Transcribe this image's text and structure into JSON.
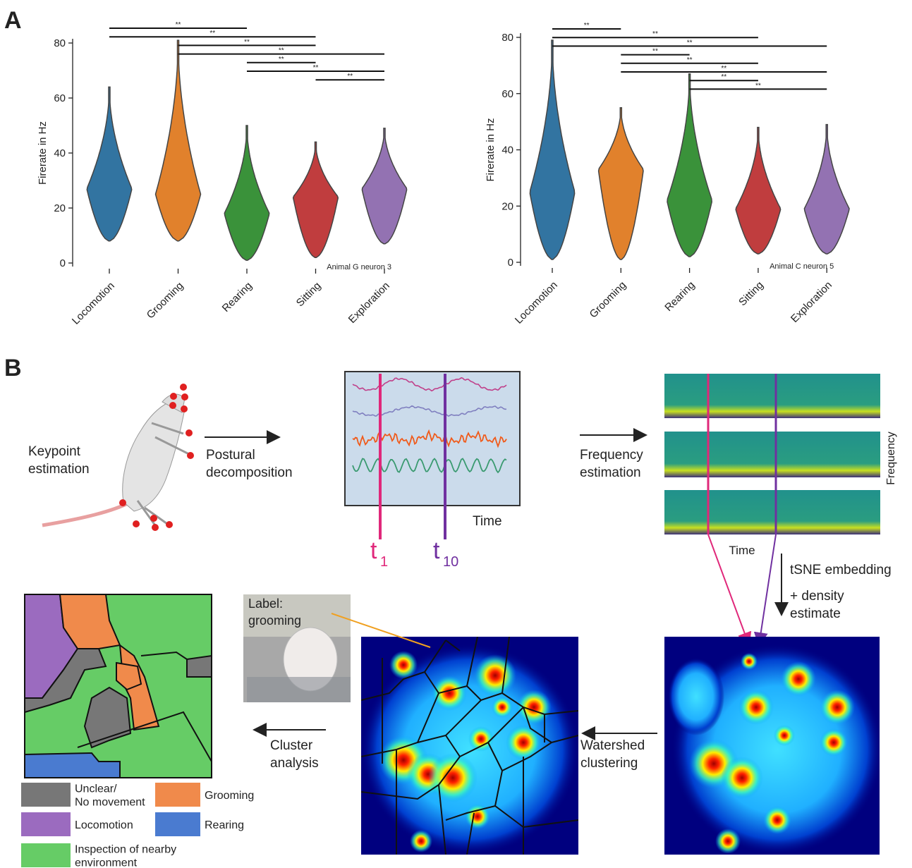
{
  "panel_labels": [
    "A",
    "B"
  ],
  "chart_data": [
    {
      "type": "violin",
      "ylabel": "Firerate in Hz",
      "categories": [
        "Locomotion",
        "Grooming",
        "Rearing",
        "Sitting",
        "Exploration"
      ],
      "values": [
        27,
        25,
        18,
        24,
        27
      ],
      "ranges": [
        [
          8,
          64
        ],
        [
          8,
          81
        ],
        [
          1,
          50
        ],
        [
          2,
          44
        ],
        [
          7,
          49
        ]
      ],
      "colors": [
        "#3274a1",
        "#e1812c",
        "#3a923a",
        "#c03d3e",
        "#9372b2"
      ],
      "ylim": [
        0,
        80
      ],
      "yticks": [
        0,
        20,
        40,
        60,
        80
      ],
      "annotation": "Animal G neuron 3",
      "significance": [
        {
          "from": 0,
          "to": 2,
          "label": "**"
        },
        {
          "from": 0,
          "to": 3,
          "label": "**"
        },
        {
          "from": 1,
          "to": 3,
          "label": "**"
        },
        {
          "from": 1,
          "to": 4,
          "label": "**"
        },
        {
          "from": 2,
          "to": 3,
          "label": "**"
        },
        {
          "from": 2,
          "to": 4,
          "label": "**"
        },
        {
          "from": 3,
          "to": 4,
          "label": "**"
        }
      ]
    },
    {
      "type": "violin",
      "ylabel": "Firerate in Hz",
      "categories": [
        "Locomotion",
        "Grooming",
        "Rearing",
        "Sitting",
        "Exploration"
      ],
      "values": [
        25,
        33,
        22,
        19,
        19
      ],
      "ranges": [
        [
          1,
          79
        ],
        [
          1,
          55
        ],
        [
          2,
          67
        ],
        [
          3,
          48
        ],
        [
          3,
          49
        ]
      ],
      "colors": [
        "#3274a1",
        "#e1812c",
        "#3a923a",
        "#c03d3e",
        "#9372b2"
      ],
      "ylim": [
        0,
        80
      ],
      "yticks": [
        0,
        20,
        40,
        60,
        80
      ],
      "annotation": "Animal C neuron 5",
      "significance": [
        {
          "from": 0,
          "to": 1,
          "label": "**"
        },
        {
          "from": 0,
          "to": 3,
          "label": "**"
        },
        {
          "from": 0,
          "to": 4,
          "label": "**"
        },
        {
          "from": 1,
          "to": 2,
          "label": "**"
        },
        {
          "from": 1,
          "to": 3,
          "label": "**"
        },
        {
          "from": 1,
          "to": 4,
          "label": "**"
        },
        {
          "from": 2,
          "to": 3,
          "label": "**"
        },
        {
          "from": 2,
          "to": 4,
          "label": "**"
        }
      ]
    }
  ],
  "diagram": {
    "keypoint": [
      "Keypoint",
      "estimation"
    ],
    "postural": [
      "Postural",
      "decomposition"
    ],
    "time_a": "Time",
    "t1": {
      "base": "t",
      "sub": "1"
    },
    "t10": {
      "base": "t",
      "sub": "10"
    },
    "frequency_step": [
      "Frequency",
      "estimation"
    ],
    "frequency_axis": "Frequency",
    "time_b": "Time",
    "tsne": "tSNE embedding",
    "density": [
      "+ density",
      "estimate"
    ],
    "watershed": [
      "Watershed",
      "clustering"
    ],
    "cluster": [
      "Cluster",
      "analysis"
    ],
    "photo_label": [
      "Label:",
      "grooming"
    ]
  },
  "legend": [
    {
      "label": [
        "Unclear/",
        "No movement"
      ],
      "color": "#777777"
    },
    {
      "label": [
        "Grooming"
      ],
      "color": "#f08a4b"
    },
    {
      "label": [
        "Locomotion"
      ],
      "color": "#9b6bbf"
    },
    {
      "label": [
        "Rearing"
      ],
      "color": "#4a7bd0"
    },
    {
      "label": [
        "Inspection of nearby",
        "environment"
      ],
      "color": "#66cc66"
    }
  ]
}
